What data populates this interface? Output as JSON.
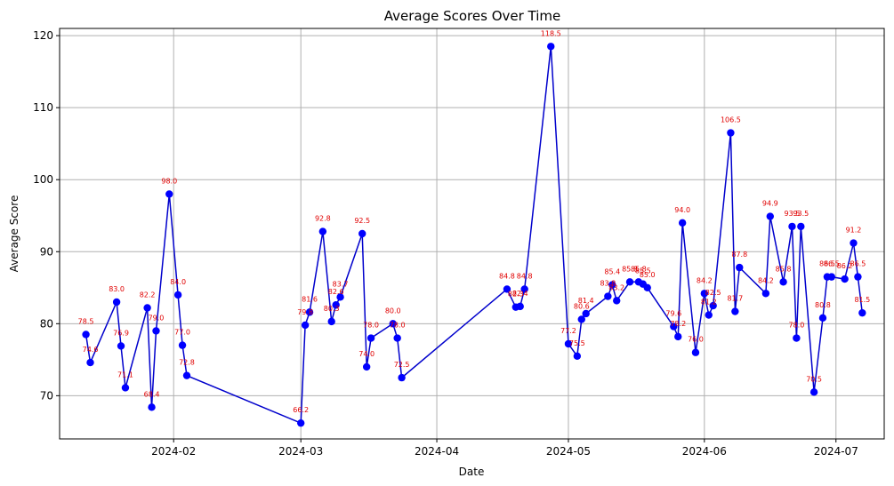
{
  "chart_data": {
    "type": "line",
    "title": "Average Scores Over Time",
    "xlabel": "Date",
    "ylabel": "Average Score",
    "x_ticks": [
      "2024-02",
      "2024-03",
      "2024-04",
      "2024-05",
      "2024-06",
      "2024-07"
    ],
    "y_ticks": [
      70,
      80,
      90,
      100,
      110,
      120
    ],
    "xlim": [
      "2024-01-06",
      "2024-07-12"
    ],
    "ylim": [
      64,
      121
    ],
    "grid": true,
    "line_color": "#0000cc",
    "marker_color": "#0000ff",
    "label_color": "#e00000",
    "points": [
      {
        "date": "2024-01-12",
        "value": 78.5,
        "label": "78.5"
      },
      {
        "date": "2024-01-13",
        "value": 74.6,
        "label": "74.6"
      },
      {
        "date": "2024-01-19",
        "value": 83.0,
        "label": "83.0"
      },
      {
        "date": "2024-01-20",
        "value": 76.9,
        "label": "76.9"
      },
      {
        "date": "2024-01-21",
        "value": 71.1,
        "label": "71.1"
      },
      {
        "date": "2024-01-26",
        "value": 82.2,
        "label": "82.2"
      },
      {
        "date": "2024-01-27",
        "value": 68.4,
        "label": "68.4"
      },
      {
        "date": "2024-01-28",
        "value": 79.0,
        "label": "79.0"
      },
      {
        "date": "2024-01-31",
        "value": 98.0,
        "label": "98.0"
      },
      {
        "date": "2024-02-02",
        "value": 84.0,
        "label": "84.0"
      },
      {
        "date": "2024-02-03",
        "value": 77.0,
        "label": "77.0"
      },
      {
        "date": "2024-02-04",
        "value": 72.8,
        "label": "72.8"
      },
      {
        "date": "2024-03-01",
        "value": 66.2,
        "label": "66.2"
      },
      {
        "date": "2024-03-02",
        "value": 79.8,
        "label": "79.8"
      },
      {
        "date": "2024-03-03",
        "value": 81.6,
        "label": "81.6"
      },
      {
        "date": "2024-03-06",
        "value": 92.8,
        "label": "92.8"
      },
      {
        "date": "2024-03-08",
        "value": 80.3,
        "label": "80.3"
      },
      {
        "date": "2024-03-09",
        "value": 82.6,
        "label": "82.6"
      },
      {
        "date": "2024-03-10",
        "value": 83.7,
        "label": "83.7"
      },
      {
        "date": "2024-03-15",
        "value": 92.5,
        "label": "92.5"
      },
      {
        "date": "2024-03-16",
        "value": 74.0,
        "label": "74.0"
      },
      {
        "date": "2024-03-17",
        "value": 78.0,
        "label": "78.0"
      },
      {
        "date": "2024-03-22",
        "value": 80.0,
        "label": "80.0"
      },
      {
        "date": "2024-03-23",
        "value": 78.0,
        "label": "78.0"
      },
      {
        "date": "2024-03-24",
        "value": 72.5,
        "label": "72.5"
      },
      {
        "date": "2024-04-17",
        "value": 84.8,
        "label": "84.8"
      },
      {
        "date": "2024-04-19",
        "value": 82.3,
        "label": "82.3"
      },
      {
        "date": "2024-04-20",
        "value": 82.4,
        "label": "82.4"
      },
      {
        "date": "2024-04-21",
        "value": 84.8,
        "label": "84.8"
      },
      {
        "date": "2024-04-27",
        "value": 118.5,
        "label": "118.5"
      },
      {
        "date": "2024-05-01",
        "value": 77.2,
        "label": "77.2"
      },
      {
        "date": "2024-05-03",
        "value": 75.5,
        "label": "75.5"
      },
      {
        "date": "2024-05-04",
        "value": 80.6,
        "label": "80.6"
      },
      {
        "date": "2024-05-05",
        "value": 81.4,
        "label": "81.4"
      },
      {
        "date": "2024-05-10",
        "value": 83.8,
        "label": "83.8"
      },
      {
        "date": "2024-05-11",
        "value": 85.4,
        "label": "85.4"
      },
      {
        "date": "2024-05-12",
        "value": 83.2,
        "label": "83.2"
      },
      {
        "date": "2024-05-15",
        "value": 85.8,
        "label": "85.8"
      },
      {
        "date": "2024-05-17",
        "value": 85.8,
        "label": "85.8"
      },
      {
        "date": "2024-05-18",
        "value": 85.5,
        "label": "85.5"
      },
      {
        "date": "2024-05-19",
        "value": 85.0,
        "label": "85.0"
      },
      {
        "date": "2024-05-25",
        "value": 79.6,
        "label": "79.6"
      },
      {
        "date": "2024-05-26",
        "value": 78.2,
        "label": "78.2"
      },
      {
        "date": "2024-05-27",
        "value": 94.0,
        "label": "94.0"
      },
      {
        "date": "2024-05-30",
        "value": 76.0,
        "label": "76.0"
      },
      {
        "date": "2024-06-01",
        "value": 84.2,
        "label": "84.2"
      },
      {
        "date": "2024-06-02",
        "value": 81.2,
        "label": "81.2"
      },
      {
        "date": "2024-06-03",
        "value": 82.5,
        "label": "82.5"
      },
      {
        "date": "2024-06-07",
        "value": 106.5,
        "label": "106.5"
      },
      {
        "date": "2024-06-08",
        "value": 81.7,
        "label": "81.7"
      },
      {
        "date": "2024-06-09",
        "value": 87.8,
        "label": "87.8"
      },
      {
        "date": "2024-06-15",
        "value": 84.2,
        "label": "84.2"
      },
      {
        "date": "2024-06-16",
        "value": 94.9,
        "label": "94.9"
      },
      {
        "date": "2024-06-19",
        "value": 85.8,
        "label": "85.8"
      },
      {
        "date": "2024-06-21",
        "value": 93.5,
        "label": "93.5"
      },
      {
        "date": "2024-06-22",
        "value": 78.0,
        "label": "78.0"
      },
      {
        "date": "2024-06-23",
        "value": 93.5,
        "label": "93.5"
      },
      {
        "date": "2024-06-26",
        "value": 70.5,
        "label": "70.5"
      },
      {
        "date": "2024-06-28",
        "value": 80.8,
        "label": "80.8"
      },
      {
        "date": "2024-06-29",
        "value": 86.5,
        "label": "86.5"
      },
      {
        "date": "2024-06-30",
        "value": 86.5,
        "label": "86.5"
      },
      {
        "date": "2024-07-03",
        "value": 86.2,
        "label": "86.2"
      },
      {
        "date": "2024-07-05",
        "value": 91.2,
        "label": "91.2"
      },
      {
        "date": "2024-07-06",
        "value": 86.5,
        "label": "86.5"
      },
      {
        "date": "2024-07-07",
        "value": 81.5,
        "label": "81.5"
      }
    ]
  }
}
